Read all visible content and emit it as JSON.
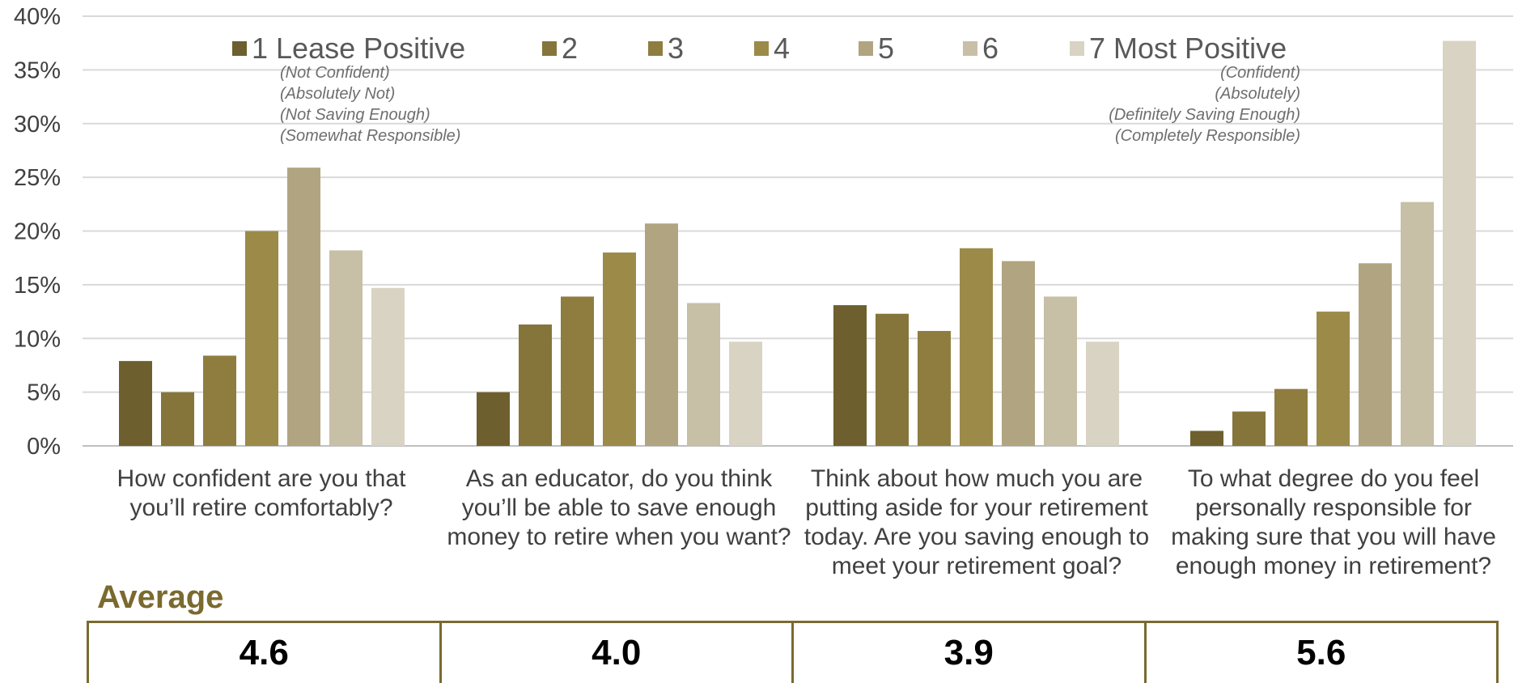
{
  "chart_data": {
    "type": "bar",
    "y_ticks": [
      "0%",
      "5%",
      "10%",
      "15%",
      "20%",
      "25%",
      "30%",
      "35%",
      "40%"
    ],
    "ylim": [
      0,
      40
    ],
    "grid": true,
    "legend_position": "top",
    "categories": [
      "How confident are you that you’ll retire comfortably?",
      "As an educator, do you think you’ll be able to save enough money to retire when you want?",
      "Think about how much you are putting aside for your retirement today.  Are you saving enough to meet your retirement goal?",
      "To what degree do you feel personally responsible for making sure that you will have enough money in retirement?"
    ],
    "series": [
      {
        "name": "1 Lease Positive",
        "color": "#6e5f2e",
        "values": [
          7.9,
          5.0,
          13.1,
          1.4
        ]
      },
      {
        "name": "2",
        "color": "#85753a",
        "values": [
          5.0,
          11.3,
          12.3,
          3.2
        ]
      },
      {
        "name": "3",
        "color": "#8f7d40",
        "values": [
          8.4,
          13.9,
          10.7,
          5.3
        ]
      },
      {
        "name": "4",
        "color": "#9c8a48",
        "values": [
          20.0,
          18.0,
          18.4,
          12.5
        ]
      },
      {
        "name": "5",
        "color": "#b0a580",
        "values": [
          25.9,
          20.7,
          17.2,
          17.0
        ]
      },
      {
        "name": "6",
        "color": "#c7bfa6",
        "values": [
          18.2,
          13.3,
          13.9,
          22.7
        ]
      },
      {
        "name": "7 Most Positive",
        "color": "#d9d3c4",
        "values": [
          14.7,
          9.7,
          9.7,
          37.7
        ]
      }
    ],
    "annotations_left": [
      "(Not Confident)",
      "(Absolutely Not)",
      "(Not Saving Enough)",
      "(Somewhat Responsible)"
    ],
    "annotations_right": [
      "(Confident)",
      "(Absolutely)",
      "(Definitely Saving Enough)",
      "(Completely Responsible)"
    ]
  },
  "average": {
    "title": "Average",
    "values": [
      "4.6",
      "4.0",
      "3.9",
      "5.6"
    ]
  },
  "colors": {
    "accent": "#7a6a2e",
    "grid": "#d9d9d9"
  }
}
